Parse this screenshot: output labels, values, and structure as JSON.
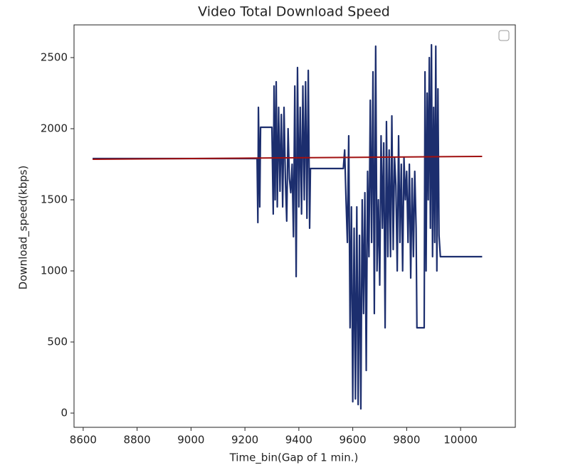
{
  "chart_data": {
    "type": "line",
    "title": "Video Total Download Speed",
    "x_label": "Time_bin(Gap of 1 min.)",
    "y_label": "Download_speed(kbps)",
    "xlim": [
      8566,
      10203
    ],
    "ylim": [
      -100,
      2730
    ],
    "xticks": [
      8600,
      8800,
      9000,
      9200,
      9400,
      9600,
      9800,
      10000
    ],
    "yticks": [
      0,
      500,
      1000,
      1500,
      2000,
      2500
    ],
    "legend": "upper right",
    "series": [
      {
        "color": "#1c2e6e",
        "x": [
          8635,
          9245,
          9248,
          9250,
          9255,
          9258,
          9300,
          9305,
          9308,
          9312,
          9316,
          9320,
          9325,
          9330,
          9335,
          9340,
          9345,
          9350,
          9355,
          9360,
          9365,
          9370,
          9375,
          9380,
          9385,
          9390,
          9395,
          9400,
          9405,
          9410,
          9415,
          9420,
          9425,
          9430,
          9435,
          9440,
          9443,
          9565,
          9570,
          9575,
          9580,
          9585,
          9590,
          9595,
          9600,
          9605,
          9610,
          9615,
          9620,
          9625,
          9630,
          9635,
          9640,
          9645,
          9650,
          9655,
          9660,
          9665,
          9670,
          9675,
          9680,
          9685,
          9690,
          9695,
          9700,
          9705,
          9710,
          9715,
          9720,
          9725,
          9730,
          9735,
          9740,
          9745,
          9750,
          9755,
          9760,
          9765,
          9770,
          9775,
          9780,
          9785,
          9790,
          9795,
          9800,
          9805,
          9810,
          9815,
          9820,
          9825,
          9830,
          9835,
          9838,
          9865,
          9868,
          9872,
          9876,
          9880,
          9884,
          9888,
          9892,
          9896,
          9900,
          9904,
          9908,
          9912,
          9916,
          9920,
          9925,
          10080
        ],
        "values": [
          1790,
          1790,
          1340,
          2150,
          1450,
          2010,
          2010,
          1400,
          2300,
          1500,
          2330,
          1450,
          2150,
          1560,
          2100,
          1450,
          2150,
          1650,
          1350,
          2000,
          1650,
          1550,
          1750,
          1240,
          2300,
          960,
          2430,
          1450,
          2150,
          1400,
          2300,
          1500,
          2330,
          1370,
          2410,
          1300,
          1720,
          1720,
          1850,
          1500,
          1200,
          1950,
          600,
          1450,
          80,
          1300,
          100,
          1450,
          60,
          1250,
          30,
          1500,
          700,
          1550,
          300,
          1700,
          1100,
          2200,
          1200,
          2400,
          700,
          2580,
          1000,
          1500,
          900,
          1950,
          1300,
          1900,
          600,
          2050,
          1100,
          1850,
          1100,
          2090,
          1150,
          1800,
          1600,
          1000,
          1950,
          1200,
          1750,
          1000,
          1800,
          1500,
          1700,
          1200,
          1750,
          950,
          1650,
          1100,
          1700,
          1300,
          600,
          600,
          2400,
          1000,
          2250,
          1500,
          2500,
          1300,
          2590,
          1100,
          2150,
          1200,
          2580,
          1000,
          2280,
          1250,
          1100,
          1100
        ]
      },
      {
        "color": "#a01010",
        "x": [
          8635,
          10080
        ],
        "values": [
          1785,
          1805
        ]
      }
    ]
  }
}
